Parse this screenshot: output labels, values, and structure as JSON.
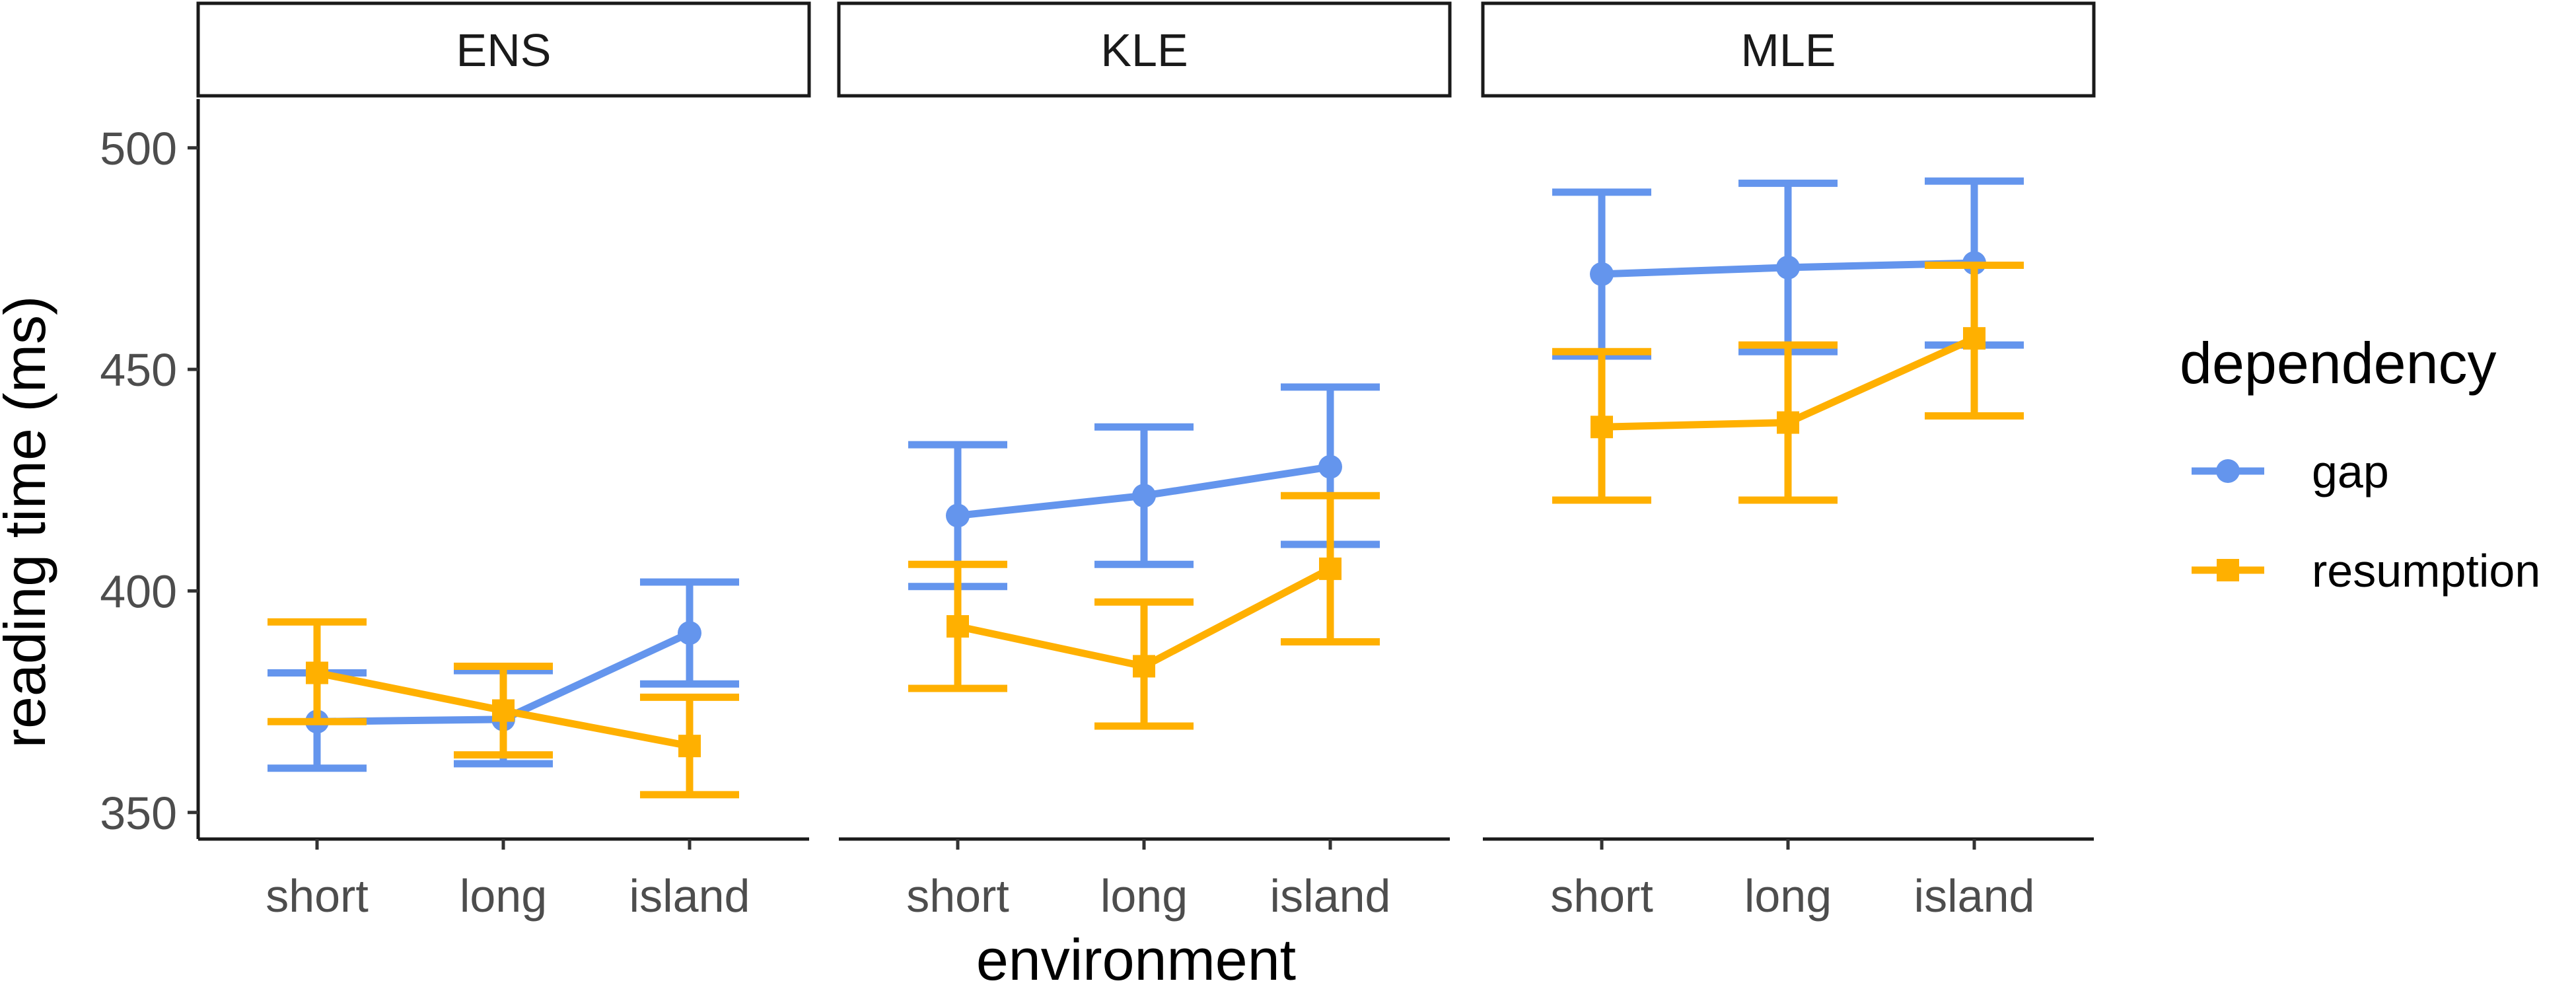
{
  "chart_data": {
    "type": "line",
    "xlabel": "environment",
    "ylabel": "reading time (ms)",
    "categories": [
      "short",
      "long",
      "island"
    ],
    "yticks": [
      350,
      400,
      450,
      500
    ],
    "ylim": [
      344,
      511
    ],
    "legend": {
      "title": "dependency",
      "placement": "right"
    },
    "series_styles": [
      {
        "name": "gap",
        "color": "#6495ED",
        "marker": "circle"
      },
      {
        "name": "resumption",
        "color": "#FFB000",
        "marker": "square"
      }
    ],
    "panels": [
      {
        "name": "ENS",
        "series": [
          {
            "name": "gap",
            "values": [
              370.5,
              371,
              390.5
            ],
            "err_low": [
              360,
              361,
              379
            ],
            "err_high": [
              381.5,
              382,
              402
            ]
          },
          {
            "name": "resumption",
            "values": [
              381.5,
              373,
              365
            ],
            "err_low": [
              370.5,
              363,
              354
            ],
            "err_high": [
              393,
              383,
              376
            ]
          }
        ]
      },
      {
        "name": "KLE",
        "series": [
          {
            "name": "gap",
            "values": [
              417,
              421.5,
              428
            ],
            "err_low": [
              401,
              406,
              410.5
            ],
            "err_high": [
              433,
              437,
              446
            ]
          },
          {
            "name": "resumption",
            "values": [
              392,
              383,
              405
            ],
            "err_low": [
              378,
              369.5,
              388.5
            ],
            "err_high": [
              406,
              397.5,
              421.5
            ]
          }
        ]
      },
      {
        "name": "MLE",
        "series": [
          {
            "name": "gap",
            "values": [
              471.5,
              473,
              474
            ],
            "err_low": [
              453,
              454,
              455.5
            ],
            "err_high": [
              490,
              492,
              492.5
            ]
          },
          {
            "name": "resumption",
            "values": [
              437,
              438,
              457
            ],
            "err_low": [
              420.5,
              420.5,
              439.5
            ],
            "err_high": [
              454,
              455.5,
              473.5
            ]
          }
        ]
      }
    ]
  }
}
